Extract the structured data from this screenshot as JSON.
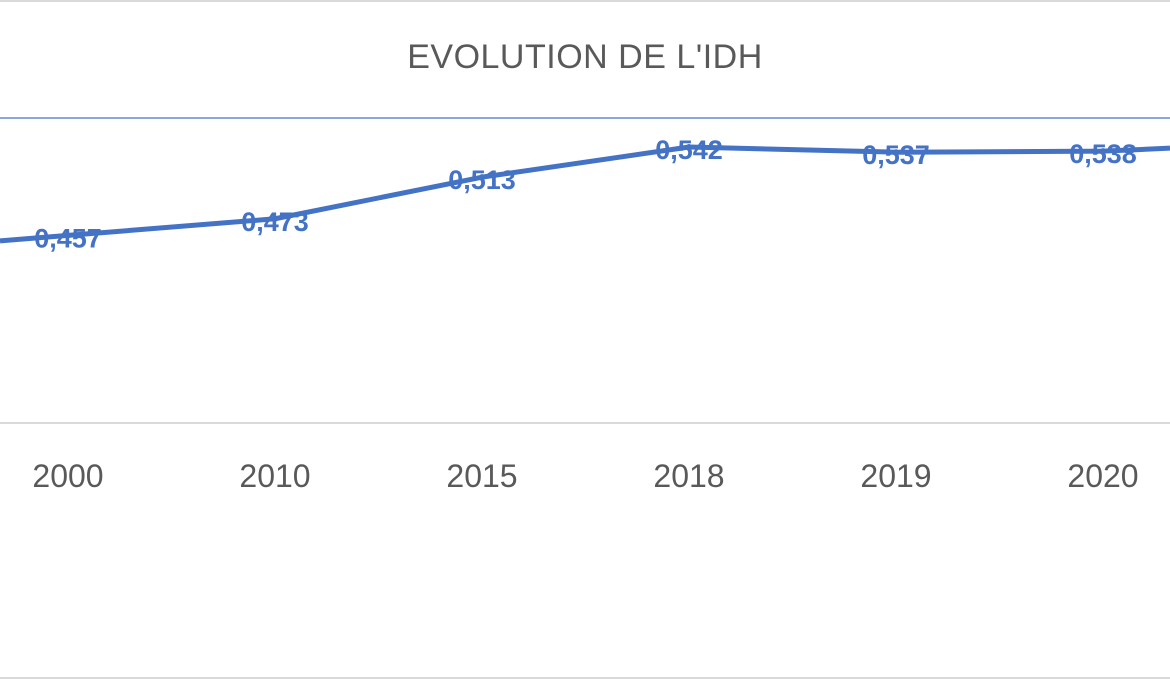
{
  "chart_data": {
    "type": "line",
    "title": "EVOLUTION DE L'IDH",
    "xlabel": "",
    "ylabel": "",
    "categories": [
      "2000",
      "2010",
      "2015",
      "2018",
      "2019",
      "2020"
    ],
    "series": [
      {
        "name": "IDH",
        "values": [
          0.457,
          0.473,
          0.513,
          0.542,
          0.537,
          0.538
        ],
        "labels": [
          "0,457",
          "0,473",
          "0,513",
          "0,542",
          "0,537",
          "0,538"
        ]
      }
    ],
    "grid": true,
    "legend": "none",
    "colors": {
      "line": "#4472c4",
      "axis": "#d9d9d9",
      "text": "#595959",
      "gridline": "#4472c4"
    }
  }
}
